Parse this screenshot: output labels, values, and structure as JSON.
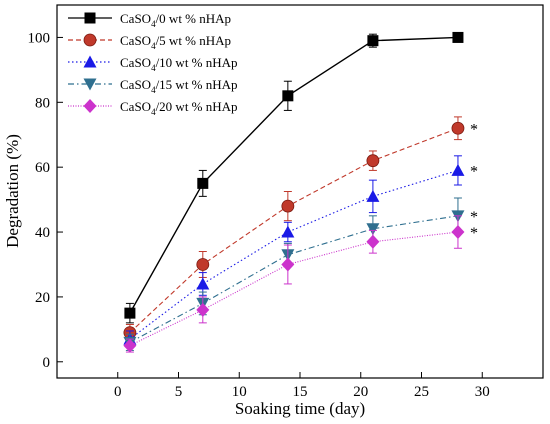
{
  "chart_data": {
    "type": "line",
    "xlabel": "Soaking time (day)",
    "ylabel": "Degradation (%)",
    "xlim": [
      -5,
      35
    ],
    "ylim": [
      -5,
      110
    ],
    "xticks": [
      0,
      5,
      10,
      15,
      20,
      25,
      30
    ],
    "yticks": [
      0,
      20,
      40,
      60,
      80,
      100
    ],
    "grid": false,
    "legend_position": "top-left",
    "x": [
      1,
      7,
      14,
      21,
      28
    ],
    "series": [
      {
        "name_main": "CaSO",
        "name_sub": "4",
        "name_rest": "/0 wt % nHAp",
        "color": "#000000",
        "marker": "square",
        "dash": "solid",
        "values": [
          15,
          55,
          82,
          99,
          100
        ],
        "errors": [
          3,
          4,
          4.5,
          2,
          0
        ],
        "significance": ""
      },
      {
        "name_main": "CaSO",
        "name_sub": "4",
        "name_rest": "/5 wt % nHAp",
        "color": "#c0392b",
        "marker": "circle",
        "dash": "dashed",
        "values": [
          9,
          30,
          48,
          62,
          72
        ],
        "errors": [
          2.5,
          4,
          4.5,
          3,
          3.5
        ],
        "significance": "*"
      },
      {
        "name_main": "CaSO",
        "name_sub": "4",
        "name_rest": "/10 wt % nHAp",
        "color": "#1a1ae6",
        "marker": "triangle-up",
        "dash": "dotted",
        "values": [
          7,
          24,
          40,
          51,
          59
        ],
        "errors": [
          2.5,
          3.5,
          3,
          5,
          4.5
        ],
        "significance": "*"
      },
      {
        "name_main": "CaSO",
        "name_sub": "4",
        "name_rest": "/15 wt % nHAp",
        "color": "#2f6f8f",
        "marker": "triangle-down",
        "dash": "dashdot",
        "values": [
          6,
          18,
          33,
          41,
          45
        ],
        "errors": [
          2.5,
          3.5,
          3.5,
          4,
          5.5
        ],
        "significance": "*"
      },
      {
        "name_main": "CaSO",
        "name_sub": "4",
        "name_rest": "/20 wt % nHAp",
        "color": "#cc33cc",
        "marker": "diamond",
        "dash": "densedot",
        "values": [
          5,
          16,
          30,
          37,
          40
        ],
        "errors": [
          2,
          4,
          6,
          3.5,
          5
        ],
        "significance": "*"
      }
    ]
  }
}
